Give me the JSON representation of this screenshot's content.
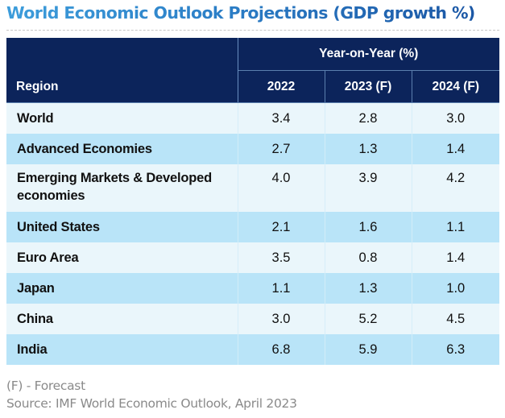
{
  "title": "World Economic Outlook Projections (GDP growth %)",
  "table": {
    "header_region": "Region",
    "header_group": "Year-on-Year (%)",
    "columns": [
      "2022",
      "2023 (F)",
      "2024 (F)"
    ],
    "rows": [
      {
        "region": "World",
        "values": [
          "3.4",
          "2.8",
          "3.0"
        ]
      },
      {
        "region": "Advanced Economies",
        "values": [
          "2.7",
          "1.3",
          "1.4"
        ]
      },
      {
        "region": "Emerging Markets & Developed economies",
        "values": [
          "4.0",
          "3.9",
          "4.2"
        ]
      },
      {
        "region": "United States",
        "values": [
          "2.1",
          "1.6",
          "1.1"
        ]
      },
      {
        "region": "Euro Area",
        "values": [
          "3.5",
          "0.8",
          "1.4"
        ]
      },
      {
        "region": "Japan",
        "values": [
          "1.1",
          "1.3",
          "1.0"
        ]
      },
      {
        "region": "China",
        "values": [
          "3.0",
          "5.2",
          "4.5"
        ]
      },
      {
        "region": "India",
        "values": [
          "6.8",
          "5.9",
          "6.3"
        ]
      }
    ]
  },
  "footnotes": {
    "forecast_note": "(F) - Forecast",
    "source": "Source: IMF World Economic Outlook, April 2023"
  },
  "colors": {
    "title_gradient_start": "#3d9ddb",
    "title_gradient_end": "#1b57a5",
    "header_bg": "#0c245b",
    "row_light": "#eaf6fb",
    "row_blue": "#b9e4f8",
    "footnote_text": "#8a8a8a"
  },
  "chart_data": {
    "type": "table",
    "title": "World Economic Outlook Projections (GDP growth %)",
    "columns": [
      "Region",
      "2022",
      "2023 (F)",
      "2024 (F)"
    ],
    "column_group": "Year-on-Year (%)",
    "rows": [
      [
        "World",
        3.4,
        2.8,
        3.0
      ],
      [
        "Advanced Economies",
        2.7,
        1.3,
        1.4
      ],
      [
        "Emerging Markets & Developed economies",
        4.0,
        3.9,
        4.2
      ],
      [
        "United States",
        2.1,
        1.6,
        1.1
      ],
      [
        "Euro Area",
        3.5,
        0.8,
        1.4
      ],
      [
        "Japan",
        1.1,
        1.3,
        1.0
      ],
      [
        "China",
        3.0,
        5.2,
        4.5
      ],
      [
        "India",
        6.8,
        5.9,
        6.3
      ]
    ]
  }
}
